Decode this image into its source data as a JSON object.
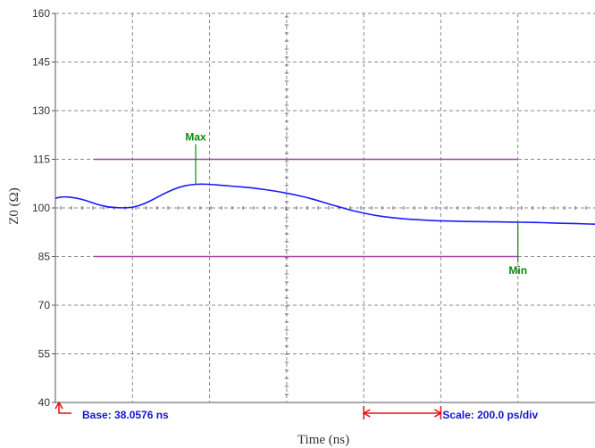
{
  "chart_data": {
    "type": "line",
    "title": "",
    "xlabel": "Time (ns)",
    "ylabel": "Z0 (Ω)",
    "x_unit_per_div": "200.0 ps",
    "xlim": [
      0,
      7
    ],
    "ylim": [
      40,
      160
    ],
    "yticks": [
      40,
      55,
      70,
      85,
      100,
      115,
      130,
      145,
      160
    ],
    "grid": true,
    "series": [
      {
        "name": "",
        "color": "#1a1aff",
        "x": [
          0,
          0.1,
          0.25,
          0.4,
          0.55,
          0.7,
          0.85,
          1.0,
          1.15,
          1.3,
          1.45,
          1.6,
          1.75,
          1.9,
          2.05,
          2.2,
          2.35,
          2.5,
          2.65,
          2.8,
          2.95,
          3.1,
          3.25,
          3.4,
          3.55,
          3.7,
          3.85,
          4.0,
          4.15,
          4.3,
          4.45,
          4.6,
          4.75,
          4.9,
          5.05,
          5.2,
          5.35,
          5.5,
          5.65,
          5.8,
          5.95,
          6.1,
          6.25,
          6.4,
          6.55,
          6.7,
          6.85,
          7.0
        ],
        "y": [
          103,
          103.5,
          103.2,
          102.3,
          101.0,
          100.2,
          100.0,
          100.1,
          101.2,
          103.0,
          104.9,
          106.4,
          107.2,
          107.4,
          107.2,
          106.9,
          106.6,
          106.3,
          105.9,
          105.4,
          104.8,
          104.1,
          103.3,
          102.3,
          101.2,
          100.2,
          99.2,
          98.4,
          97.7,
          97.2,
          96.8,
          96.5,
          96.3,
          96.1,
          96.0,
          95.9,
          95.8,
          95.8,
          95.7,
          95.7,
          95.6,
          95.6,
          95.5,
          95.4,
          95.3,
          95.2,
          95.1,
          95.0
        ]
      }
    ],
    "limit_lines": [
      {
        "y": 115,
        "x_start": 0.5,
        "x_end": 6.0,
        "color": "#a040a0"
      },
      {
        "y": 85,
        "x_start": 0.5,
        "x_end": 6.0,
        "color": "#a040a0"
      }
    ],
    "markers": [
      {
        "label": "Max",
        "x": 1.82,
        "y": 107.3,
        "color": "#0a8a0a"
      },
      {
        "label": "Min",
        "x": 6.0,
        "y": 95.6,
        "color": "#0a8a0a"
      }
    ],
    "annotations": {
      "base": "Base: 38.0576 ns",
      "scale": "Scale: 200.0 ps/div",
      "base_arrow_color": "#e01010",
      "scale_bar_color": "#e01010",
      "info_color": "#1515cc"
    }
  }
}
